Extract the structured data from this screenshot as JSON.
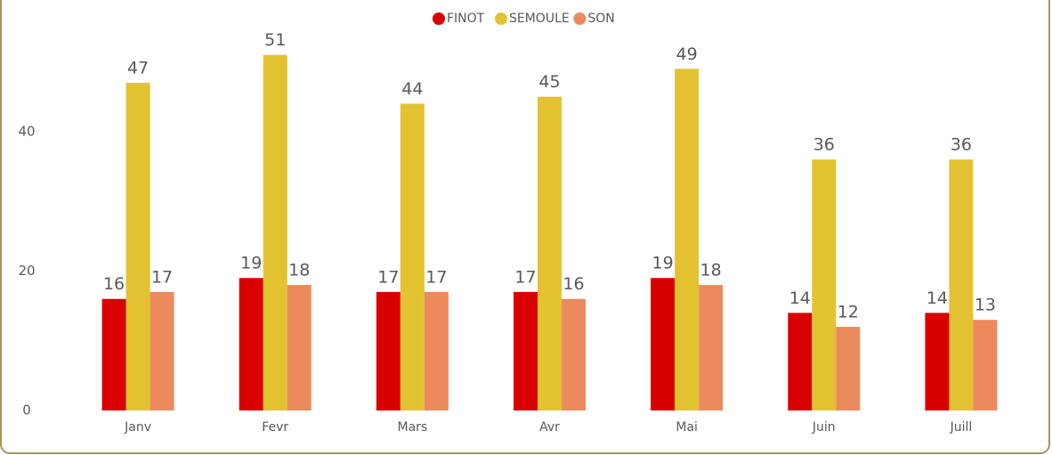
{
  "chart_data": {
    "type": "bar",
    "categories": [
      "Janv",
      "Fevr",
      "Mars",
      "Avr",
      "Mai",
      "Juin",
      "Juill"
    ],
    "series": [
      {
        "name": "FINOT",
        "color": "#d90000",
        "values": [
          16,
          19,
          17,
          17,
          19,
          14,
          14
        ]
      },
      {
        "name": "SEMOULE",
        "color": "#e3c232",
        "values": [
          47,
          51,
          44,
          45,
          49,
          36,
          36
        ]
      },
      {
        "name": "SON",
        "color": "#ec8a5e",
        "values": [
          17,
          18,
          17,
          16,
          18,
          12,
          13
        ]
      }
    ],
    "ylim": [
      0,
      55
    ],
    "yticks": [
      0,
      20,
      40
    ],
    "grid": false,
    "legend": "top"
  }
}
